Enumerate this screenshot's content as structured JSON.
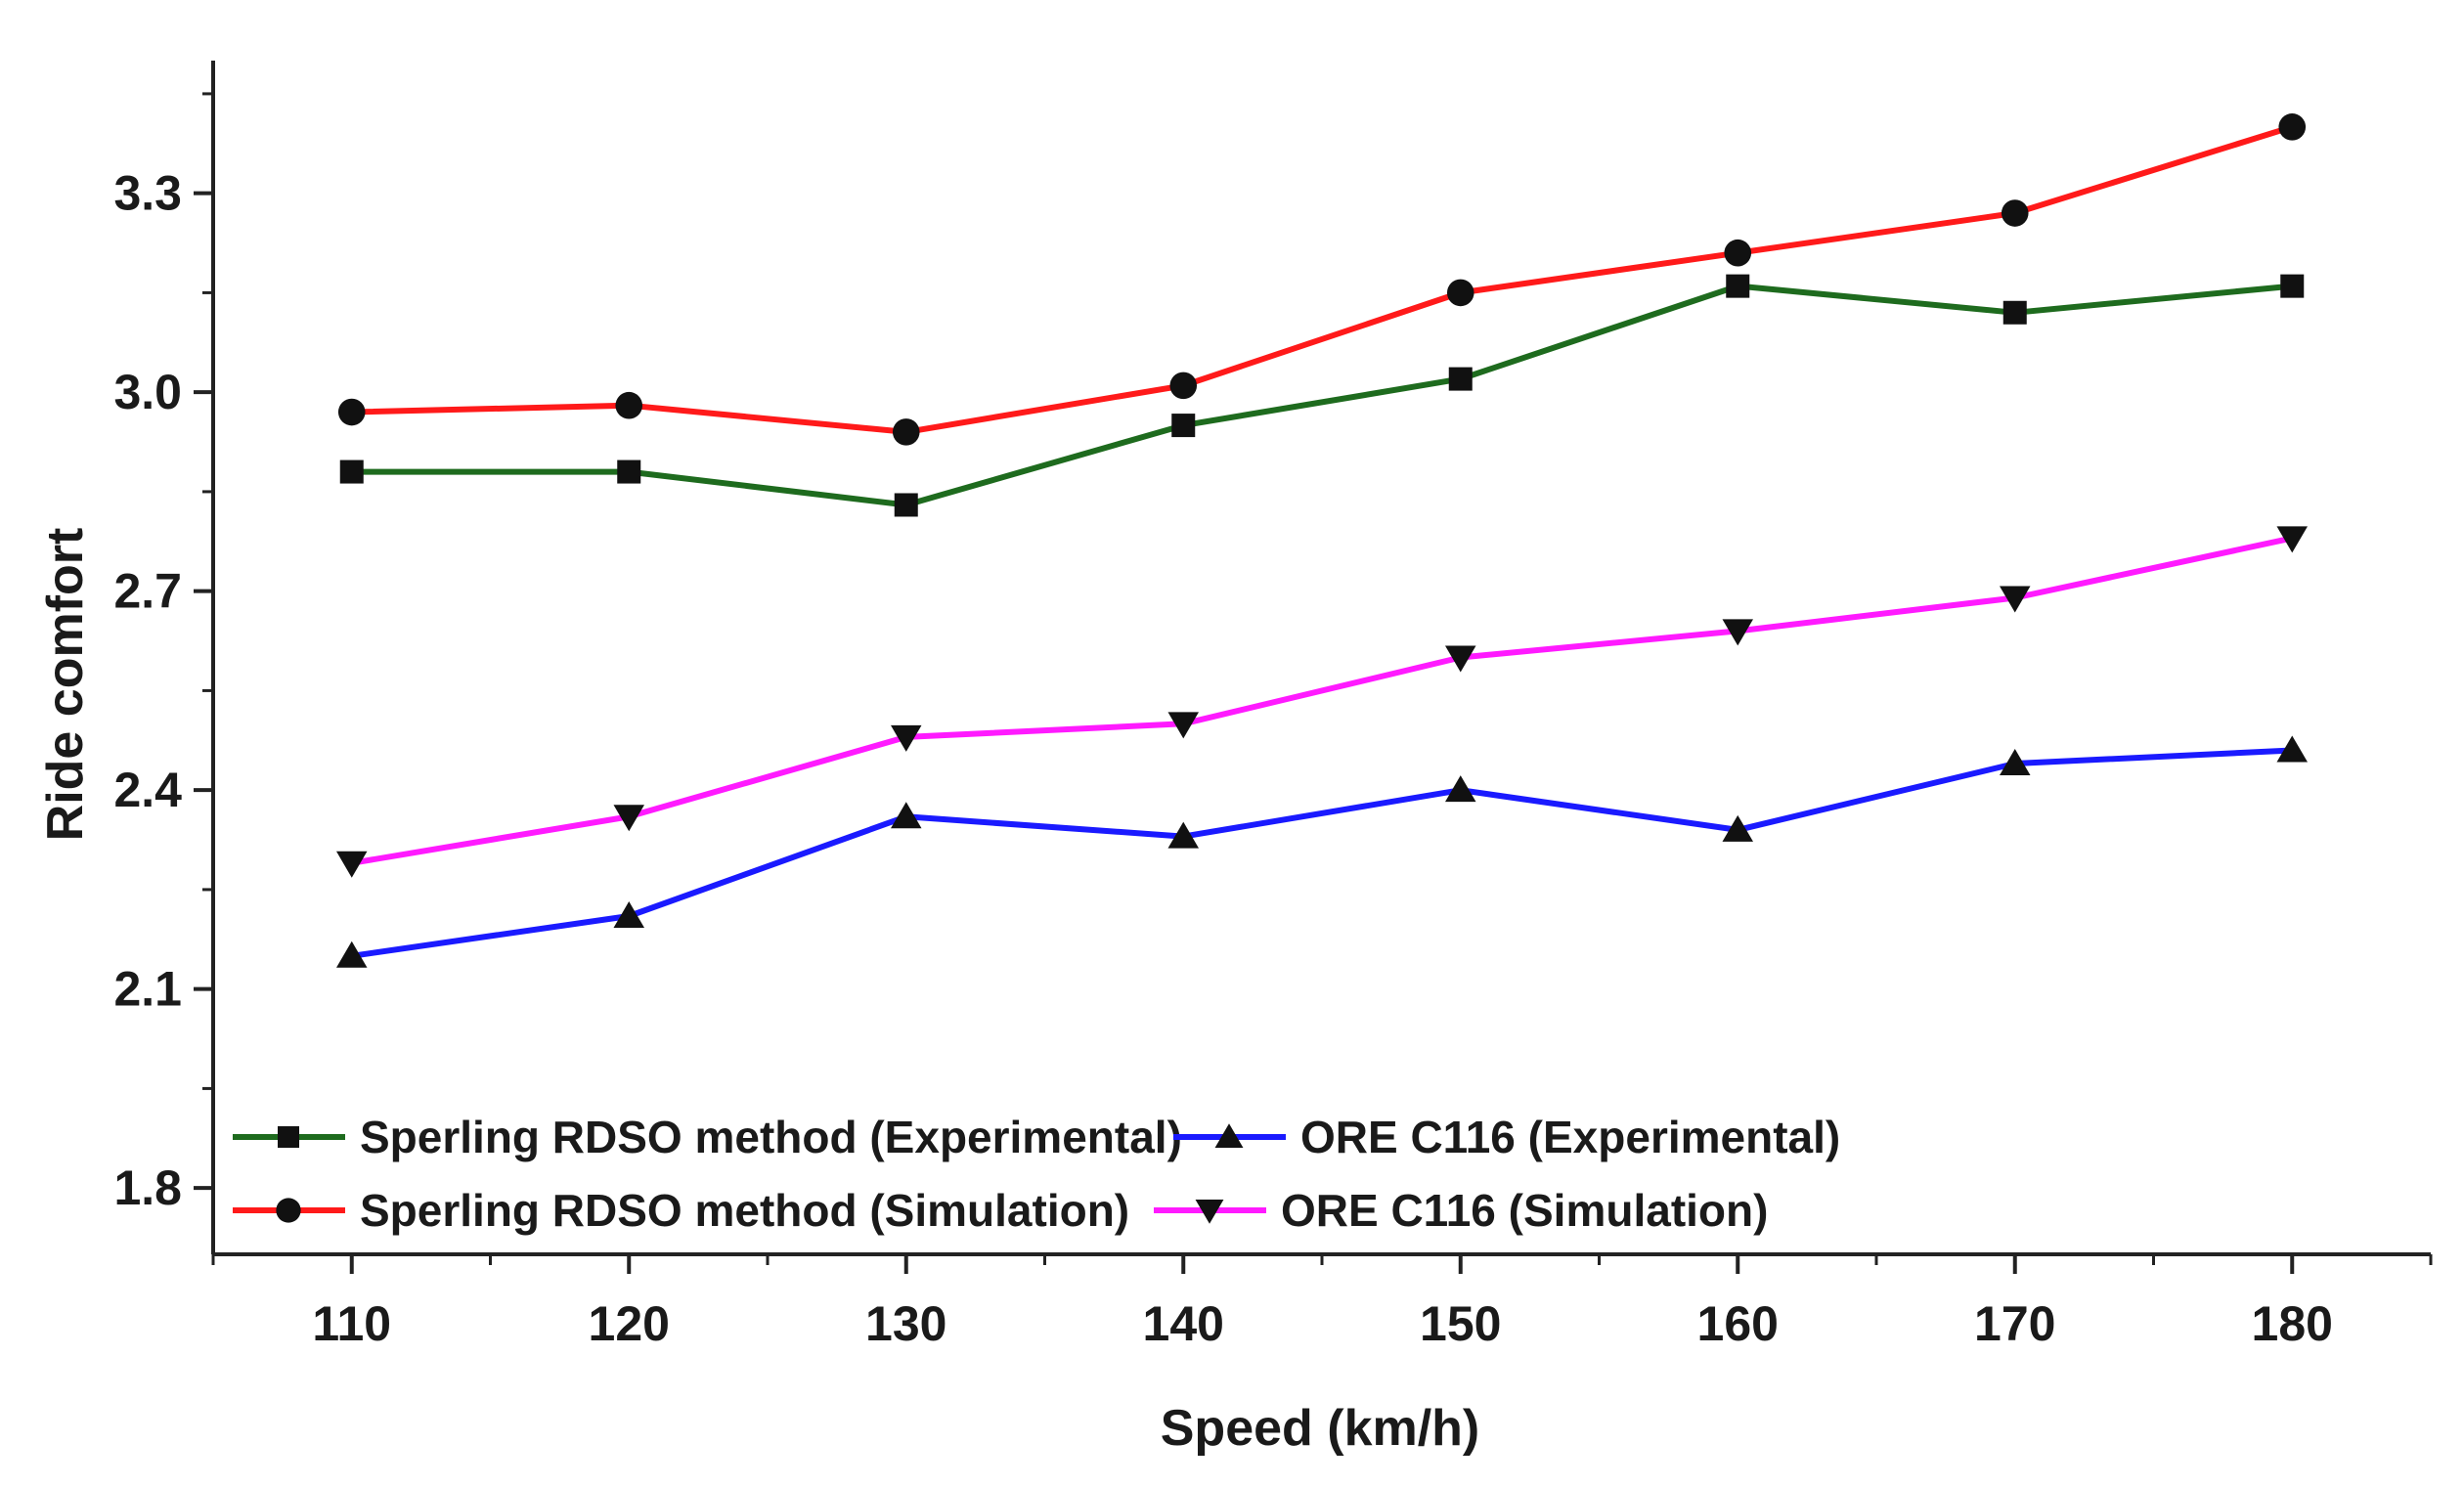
{
  "chart_data": {
    "type": "line",
    "title": "",
    "xlabel": "Speed (km/h)",
    "ylabel": "Ride comfort",
    "x": [
      110,
      120,
      130,
      140,
      150,
      160,
      170,
      180
    ],
    "xticks": [
      "110",
      "120",
      "130",
      "140",
      "150",
      "160",
      "170",
      "180"
    ],
    "xlim": [
      105,
      185
    ],
    "yticks": [
      "1.8",
      "2.1",
      "2.4",
      "2.7",
      "3.0",
      "3.3"
    ],
    "ylim": [
      1.7,
      3.5
    ],
    "grid": false,
    "legend_position": "bottom-left",
    "series": [
      {
        "name": "Sperling RDSO method (Experimental)",
        "color": "#1e6b1e",
        "marker": "square",
        "values": [
          2.88,
          2.88,
          2.83,
          2.95,
          3.02,
          3.16,
          3.12,
          3.16
        ]
      },
      {
        "name": "Sperling RDSO method (Simulation)",
        "color": "#ff1a1a",
        "marker": "circle",
        "values": [
          2.97,
          2.98,
          2.94,
          3.01,
          3.15,
          3.21,
          3.27,
          3.4
        ]
      },
      {
        "name": "ORE C116 (Experimental)",
        "color": "#1a1aff",
        "marker": "triangle-up",
        "values": [
          2.15,
          2.21,
          2.36,
          2.33,
          2.4,
          2.34,
          2.44,
          2.46
        ]
      },
      {
        "name": "ORE C116 (Simulation)",
        "color": "#ff1aff",
        "marker": "triangle-down",
        "values": [
          2.29,
          2.36,
          2.48,
          2.5,
          2.6,
          2.64,
          2.69,
          2.78
        ]
      }
    ]
  }
}
